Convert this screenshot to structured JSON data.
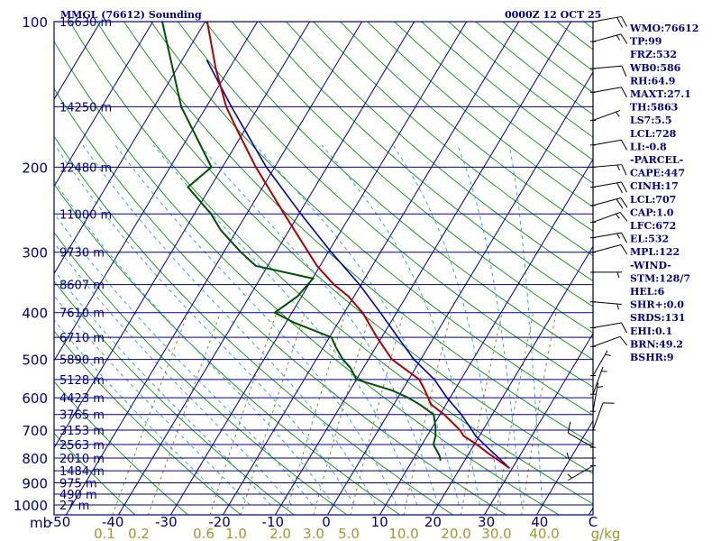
{
  "header": {
    "station": "MMGL (76612) Sounding",
    "time": "0000Z 12 OCT 25"
  },
  "colors": {
    "frame": "#000080",
    "isobar": "#000080",
    "isotherm": "#00008b",
    "dry_adiabat": "#1f9a1f",
    "moist_adiabat": "#41a6d6",
    "mixing_ratio": "#8a8a3a",
    "temperature": "#b00000",
    "dewpoint": "#005000",
    "parcel": "#0000b0",
    "wind_barb": "#000000"
  },
  "chart_data": {
    "type": "skew-t",
    "pressure_unit": "mb",
    "pressure_levels": [
      100,
      200,
      300,
      400,
      500,
      600,
      700,
      800,
      900,
      1000
    ],
    "height_levels": [
      {
        "p": 100,
        "label": "16630 m"
      },
      {
        "p": 150,
        "label": "14250 m"
      },
      {
        "p": 200,
        "label": "12480 m"
      },
      {
        "p": 250,
        "label": "11000 m"
      },
      {
        "p": 300,
        "label": "9730 m"
      },
      {
        "p": 350,
        "label": "8607 m"
      },
      {
        "p": 400,
        "label": "7610 m"
      },
      {
        "p": 450,
        "label": "6710 m"
      },
      {
        "p": 500,
        "label": "5890 m"
      },
      {
        "p": 550,
        "label": "5128 m"
      },
      {
        "p": 600,
        "label": "4423 m"
      },
      {
        "p": 650,
        "label": "3765 m"
      },
      {
        "p": 700,
        "label": "3153 m"
      },
      {
        "p": 750,
        "label": "2563 m"
      },
      {
        "p": 800,
        "label": "2010 m"
      },
      {
        "p": 850,
        "label": "1484 m"
      },
      {
        "p": 900,
        "label": "975 m"
      },
      {
        "p": 950,
        "label": "490 m"
      },
      {
        "p": 1000,
        "label": "27 m"
      }
    ],
    "temperature_ticks": [
      "-50",
      "-40",
      "-30",
      "-20",
      "-10",
      "0",
      "10",
      "20",
      "30",
      "40",
      "C"
    ],
    "mixing_ratio_ticks": [
      "0.1",
      "0.2",
      "0.6",
      "1.0",
      "2.0",
      "3.0",
      "5.0",
      "10.0",
      "20.0",
      "30.0",
      "40.0",
      "g/kg"
    ],
    "temperature_profile": [
      {
        "p": 840,
        "t": 29.5
      },
      {
        "p": 800,
        "t": 25.6
      },
      {
        "p": 780,
        "t": 23.5
      },
      {
        "p": 750,
        "t": 20.5
      },
      {
        "p": 720,
        "t": 17.0
      },
      {
        "p": 700,
        "t": 15.6
      },
      {
        "p": 650,
        "t": 10.8
      },
      {
        "p": 620,
        "t": 7.2
      },
      {
        "p": 600,
        "t": 5.8
      },
      {
        "p": 580,
        "t": 4.4
      },
      {
        "p": 550,
        "t": 2.0
      },
      {
        "p": 500,
        "t": -5.5
      },
      {
        "p": 450,
        "t": -10.9
      },
      {
        "p": 400,
        "t": -16.5
      },
      {
        "p": 370,
        "t": -21.1
      },
      {
        "p": 350,
        "t": -25.2
      },
      {
        "p": 320,
        "t": -30.6
      },
      {
        "p": 300,
        "t": -33.8
      },
      {
        "p": 250,
        "t": -42.8
      },
      {
        "p": 200,
        "t": -53.6
      },
      {
        "p": 170,
        "t": -60.8
      },
      {
        "p": 150,
        "t": -66.2
      },
      {
        "p": 125,
        "t": -72.6
      },
      {
        "p": 100,
        "t": -79.6
      }
    ],
    "dewpoint_profile": [
      {
        "p": 810,
        "dp": 15.4
      },
      {
        "p": 790,
        "dp": 14.6
      },
      {
        "p": 750,
        "dp": 12.2
      },
      {
        "p": 720,
        "dp": 11.6
      },
      {
        "p": 690,
        "dp": 10.6
      },
      {
        "p": 650,
        "dp": 8.8
      },
      {
        "p": 620,
        "dp": 5.0
      },
      {
        "p": 600,
        "dp": 2.0
      },
      {
        "p": 580,
        "dp": -1.8
      },
      {
        "p": 550,
        "dp": -10.0
      },
      {
        "p": 520,
        "dp": -12.5
      },
      {
        "p": 500,
        "dp": -14.9
      },
      {
        "p": 470,
        "dp": -17.8
      },
      {
        "p": 450,
        "dp": -19.6
      },
      {
        "p": 420,
        "dp": -28.3
      },
      {
        "p": 400,
        "dp": -33.3
      },
      {
        "p": 370,
        "dp": -30.8
      },
      {
        "p": 340,
        "dp": -29.9
      },
      {
        "p": 320,
        "dp": -42.3
      },
      {
        "p": 300,
        "dp": -46.7
      },
      {
        "p": 270,
        "dp": -53.1
      },
      {
        "p": 250,
        "dp": -56.8
      },
      {
        "p": 220,
        "dp": -64.3
      },
      {
        "p": 200,
        "dp": -62.1
      },
      {
        "p": 150,
        "dp": -74.8
      },
      {
        "p": 100,
        "dp": -88.2
      }
    ],
    "parcel_profile": [
      {
        "p": 840,
        "t": 29.5
      },
      {
        "p": 800,
        "t": 26.3
      },
      {
        "p": 760,
        "t": 22.8
      },
      {
        "p": 720,
        "t": 19.3
      },
      {
        "p": 700,
        "t": 17.9
      },
      {
        "p": 650,
        "t": 14.1
      },
      {
        "p": 600,
        "t": 9.4
      },
      {
        "p": 550,
        "t": 4.9
      },
      {
        "p": 500,
        "t": -1.3
      },
      {
        "p": 450,
        "t": -6.9
      },
      {
        "p": 400,
        "t": -13.1
      },
      {
        "p": 350,
        "t": -20.3
      },
      {
        "p": 300,
        "t": -29.4
      },
      {
        "p": 250,
        "t": -39.6
      },
      {
        "p": 200,
        "t": -51.6
      },
      {
        "p": 150,
        "t": -65.2
      },
      {
        "p": 120,
        "t": -75.3
      }
    ],
    "wind_barbs": [
      {
        "p": 100,
        "dir": 80,
        "spd": 20
      },
      {
        "p": 110,
        "dir": 75,
        "spd": 15
      },
      {
        "p": 125,
        "dir": 85,
        "spd": 10
      },
      {
        "p": 140,
        "dir": 80,
        "spd": 10
      },
      {
        "p": 160,
        "dir": 70,
        "spd": 5
      },
      {
        "p": 180,
        "dir": 80,
        "spd": 10
      },
      {
        "p": 200,
        "dir": 85,
        "spd": 15
      },
      {
        "p": 220,
        "dir": 80,
        "spd": 20
      },
      {
        "p": 240,
        "dir": 75,
        "spd": 20
      },
      {
        "p": 260,
        "dir": 70,
        "spd": 15
      },
      {
        "p": 280,
        "dir": 80,
        "spd": 15
      },
      {
        "p": 300,
        "dir": 75,
        "spd": 10
      },
      {
        "p": 330,
        "dir": 90,
        "spd": 5
      },
      {
        "p": 380,
        "dir": 95,
        "spd": 5
      },
      {
        "p": 430,
        "dir": 80,
        "spd": 10
      },
      {
        "p": 470,
        "dir": 70,
        "spd": 10
      },
      {
        "p": 540,
        "dir": 30,
        "spd": 5
      },
      {
        "p": 590,
        "dir": 20,
        "spd": 5
      },
      {
        "p": 640,
        "dir": 10,
        "spd": 5
      },
      {
        "p": 700,
        "dir": 20,
        "spd": 10
      },
      {
        "p": 760,
        "dir": 300,
        "spd": 10
      },
      {
        "p": 800,
        "dir": 270,
        "spd": 5
      },
      {
        "p": 830,
        "dir": 240,
        "spd": 5
      }
    ],
    "indices": [
      "WMO:76612",
      "TP:99",
      "FRZ:532",
      "WB0:586",
      "RH:64.9",
      "MAXT:27.1",
      "TH:5863",
      "LS7:5.5",
      "LCL:728",
      "LI:-0.8",
      "-PARCEL-",
      "CAPE:447",
      "CINH:17",
      "LCL:707",
      "CAP:1.0",
      "LFC:672",
      "EL:532",
      "MPL:122",
      "-WIND-",
      "STM:128/7",
      "HEL:6",
      "SHR+:0.0",
      "SRDS:131",
      "EHI:0.1",
      "BRN:49.2",
      "BSHR:9"
    ]
  }
}
